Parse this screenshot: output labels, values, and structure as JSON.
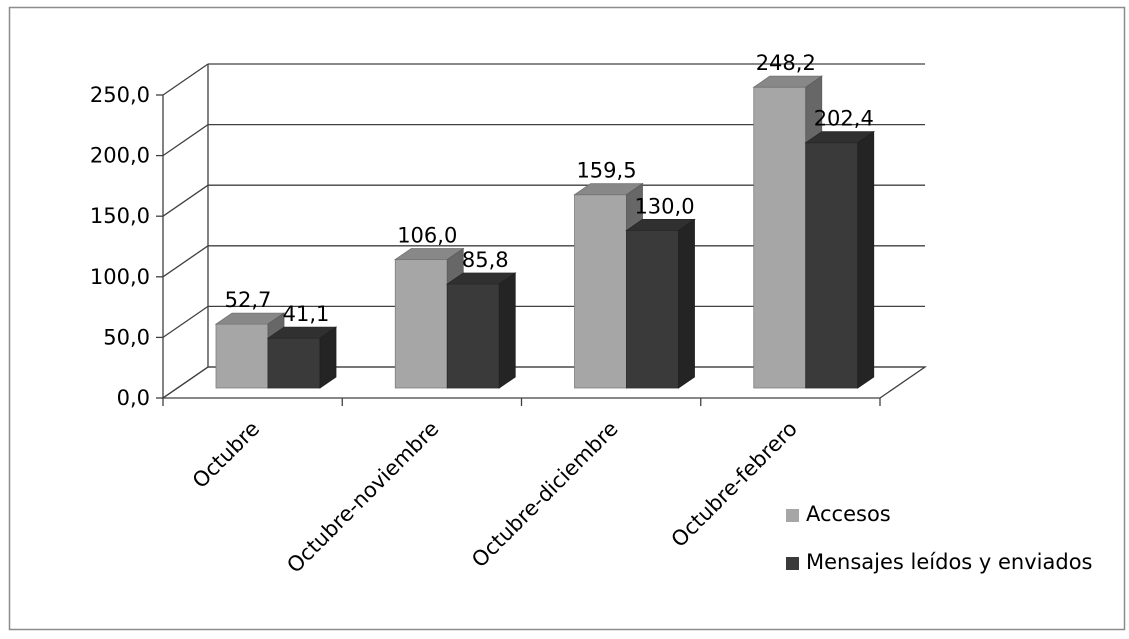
{
  "chart_data": {
    "type": "bar",
    "subtype": "3d-clustered-column",
    "title": "",
    "xlabel": "",
    "ylabel": "",
    "categories": [
      "Octubre",
      "Octubre-noviembre",
      "Octubre-diciembre",
      "Octubre-febrero"
    ],
    "series": [
      {
        "name": "Accesos",
        "values": [
          52.7,
          106.0,
          159.5,
          248.2
        ],
        "labels": [
          "52,7",
          "106,0",
          "159,5",
          "248,2"
        ],
        "color": "#a6a6a6"
      },
      {
        "name": "Mensajes leídos y enviados",
        "values": [
          41.1,
          85.8,
          130.0,
          202.4
        ],
        "labels": [
          "41,1",
          "85,8",
          "130,0",
          "202,4"
        ],
        "color": "#3a3a3a"
      }
    ],
    "ylim": [
      0,
      250
    ],
    "yticks": [
      0,
      50,
      100,
      150,
      200,
      250
    ],
    "ytick_labels": [
      "0,0",
      "50,0",
      "100,0",
      "150,0",
      "200,0",
      "250,0"
    ],
    "grid": true,
    "legend": "bottom-right"
  }
}
